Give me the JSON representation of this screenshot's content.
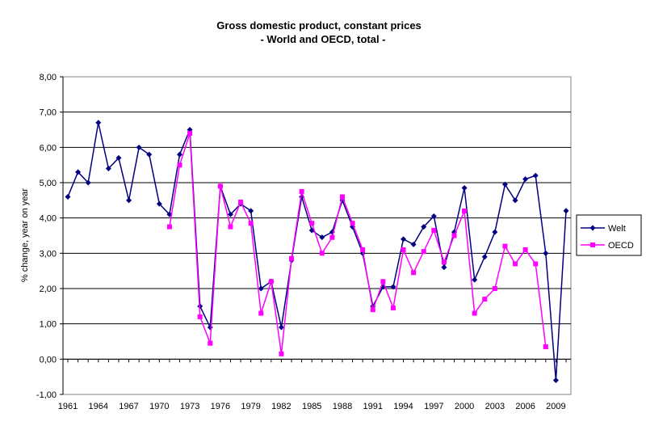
{
  "chart_data": {
    "type": "line",
    "title": "Gross domestic product, constant prices",
    "subtitle": "- World and OECD, total -",
    "ylabel": "% change, year on year",
    "xlabel": "",
    "ylim": [
      -1,
      8
    ],
    "xlim": [
      1961,
      2010
    ],
    "y_ticks": [
      "-1,00",
      "0,00",
      "1,00",
      "2,00",
      "3,00",
      "4,00",
      "5,00",
      "6,00",
      "7,00",
      "8,00"
    ],
    "x_ticks": [
      "1961",
      "1964",
      "1967",
      "1970",
      "1973",
      "1976",
      "1979",
      "1982",
      "1985",
      "1988",
      "1991",
      "1994",
      "1997",
      "2000",
      "2003",
      "2006",
      "2009"
    ],
    "grid": "horizontal",
    "legend_position": "right",
    "series": [
      {
        "name": "Welt",
        "color": "#000080",
        "marker": "diamond",
        "x": [
          1961,
          1962,
          1963,
          1964,
          1965,
          1966,
          1967,
          1968,
          1969,
          1970,
          1971,
          1972,
          1973,
          1974,
          1975,
          1976,
          1977,
          1978,
          1979,
          1980,
          1981,
          1982,
          1983,
          1984,
          1985,
          1986,
          1987,
          1988,
          1989,
          1990,
          1991,
          1992,
          1993,
          1994,
          1995,
          1996,
          1997,
          1998,
          1999,
          2000,
          2001,
          2002,
          2003,
          2004,
          2005,
          2006,
          2007,
          2008,
          2009,
          2010
        ],
        "values": [
          4.6,
          5.3,
          5.0,
          6.7,
          5.4,
          5.7,
          4.5,
          6.0,
          5.8,
          4.4,
          4.1,
          5.8,
          6.5,
          1.5,
          0.9,
          4.9,
          4.1,
          4.4,
          4.2,
          2.0,
          2.2,
          0.9,
          2.8,
          4.6,
          3.65,
          3.45,
          3.6,
          4.5,
          3.75,
          3.0,
          1.5,
          2.05,
          2.05,
          3.4,
          3.25,
          3.75,
          4.05,
          2.6,
          3.6,
          4.85,
          2.25,
          2.9,
          3.6,
          4.95,
          4.5,
          5.1,
          5.2,
          3.0,
          -0.6,
          4.2
        ]
      },
      {
        "name": "OECD",
        "color": "#FF00FF",
        "marker": "square",
        "x": [
          1971,
          1972,
          1973,
          1974,
          1975,
          1976,
          1977,
          1978,
          1979,
          1980,
          1981,
          1982,
          1983,
          1984,
          1985,
          1986,
          1987,
          1988,
          1989,
          1990,
          1991,
          1992,
          1993,
          1994,
          1995,
          1996,
          1997,
          1998,
          1999,
          2000,
          2001,
          2002,
          2003,
          2004,
          2005,
          2006,
          2007,
          2008
        ],
        "values": [
          3.75,
          5.5,
          6.4,
          1.2,
          0.45,
          4.9,
          3.75,
          4.45,
          3.85,
          1.3,
          2.2,
          0.15,
          2.85,
          4.75,
          3.85,
          3.0,
          3.45,
          4.6,
          3.85,
          3.1,
          1.4,
          2.2,
          1.45,
          3.1,
          2.45,
          3.05,
          3.65,
          2.75,
          3.5,
          4.2,
          1.3,
          1.7,
          2.0,
          3.2,
          2.7,
          3.1,
          2.7,
          0.35
        ]
      }
    ]
  }
}
